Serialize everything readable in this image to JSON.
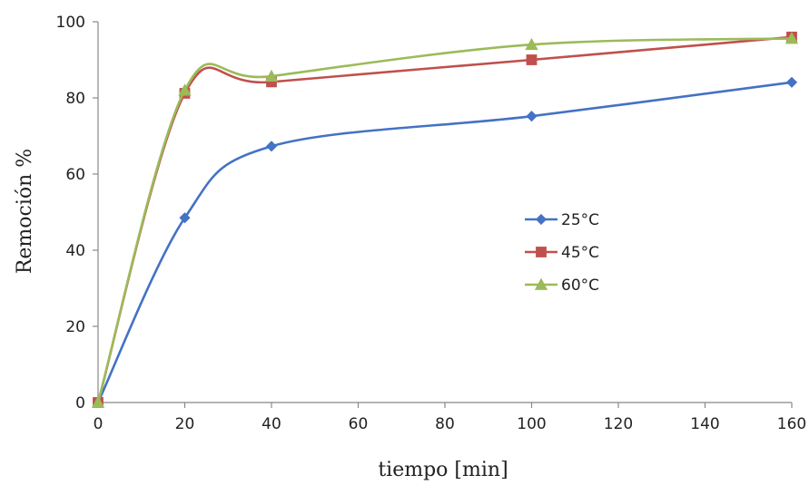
{
  "chart_data": {
    "type": "line",
    "title": "",
    "xlabel": "tiempo [min]",
    "ylabel": "Remoción %",
    "xlim": [
      0,
      160
    ],
    "ylim": [
      0,
      100
    ],
    "x_ticks": [
      0,
      20,
      40,
      60,
      80,
      100,
      120,
      140,
      160
    ],
    "y_ticks": [
      0,
      20,
      40,
      60,
      80,
      100
    ],
    "grid": false,
    "smooth": true,
    "legend_position": "center-right",
    "series": [
      {
        "name": "25°C",
        "color": "#4472C4",
        "marker": "diamond",
        "x": [
          0,
          20,
          40,
          100,
          160
        ],
        "y": [
          0,
          48.5,
          67.3,
          75.2,
          84.1
        ]
      },
      {
        "name": "45°C",
        "color": "#C0504D",
        "marker": "square",
        "x": [
          0,
          20,
          40,
          100,
          160
        ],
        "y": [
          0,
          81.2,
          84.2,
          90.0,
          96.0
        ]
      },
      {
        "name": "60°C",
        "color": "#9BBB59",
        "marker": "triangle",
        "x": [
          0,
          20,
          40,
          100,
          160
        ],
        "y": [
          0,
          82.0,
          85.7,
          94.0,
          95.6
        ]
      }
    ]
  }
}
